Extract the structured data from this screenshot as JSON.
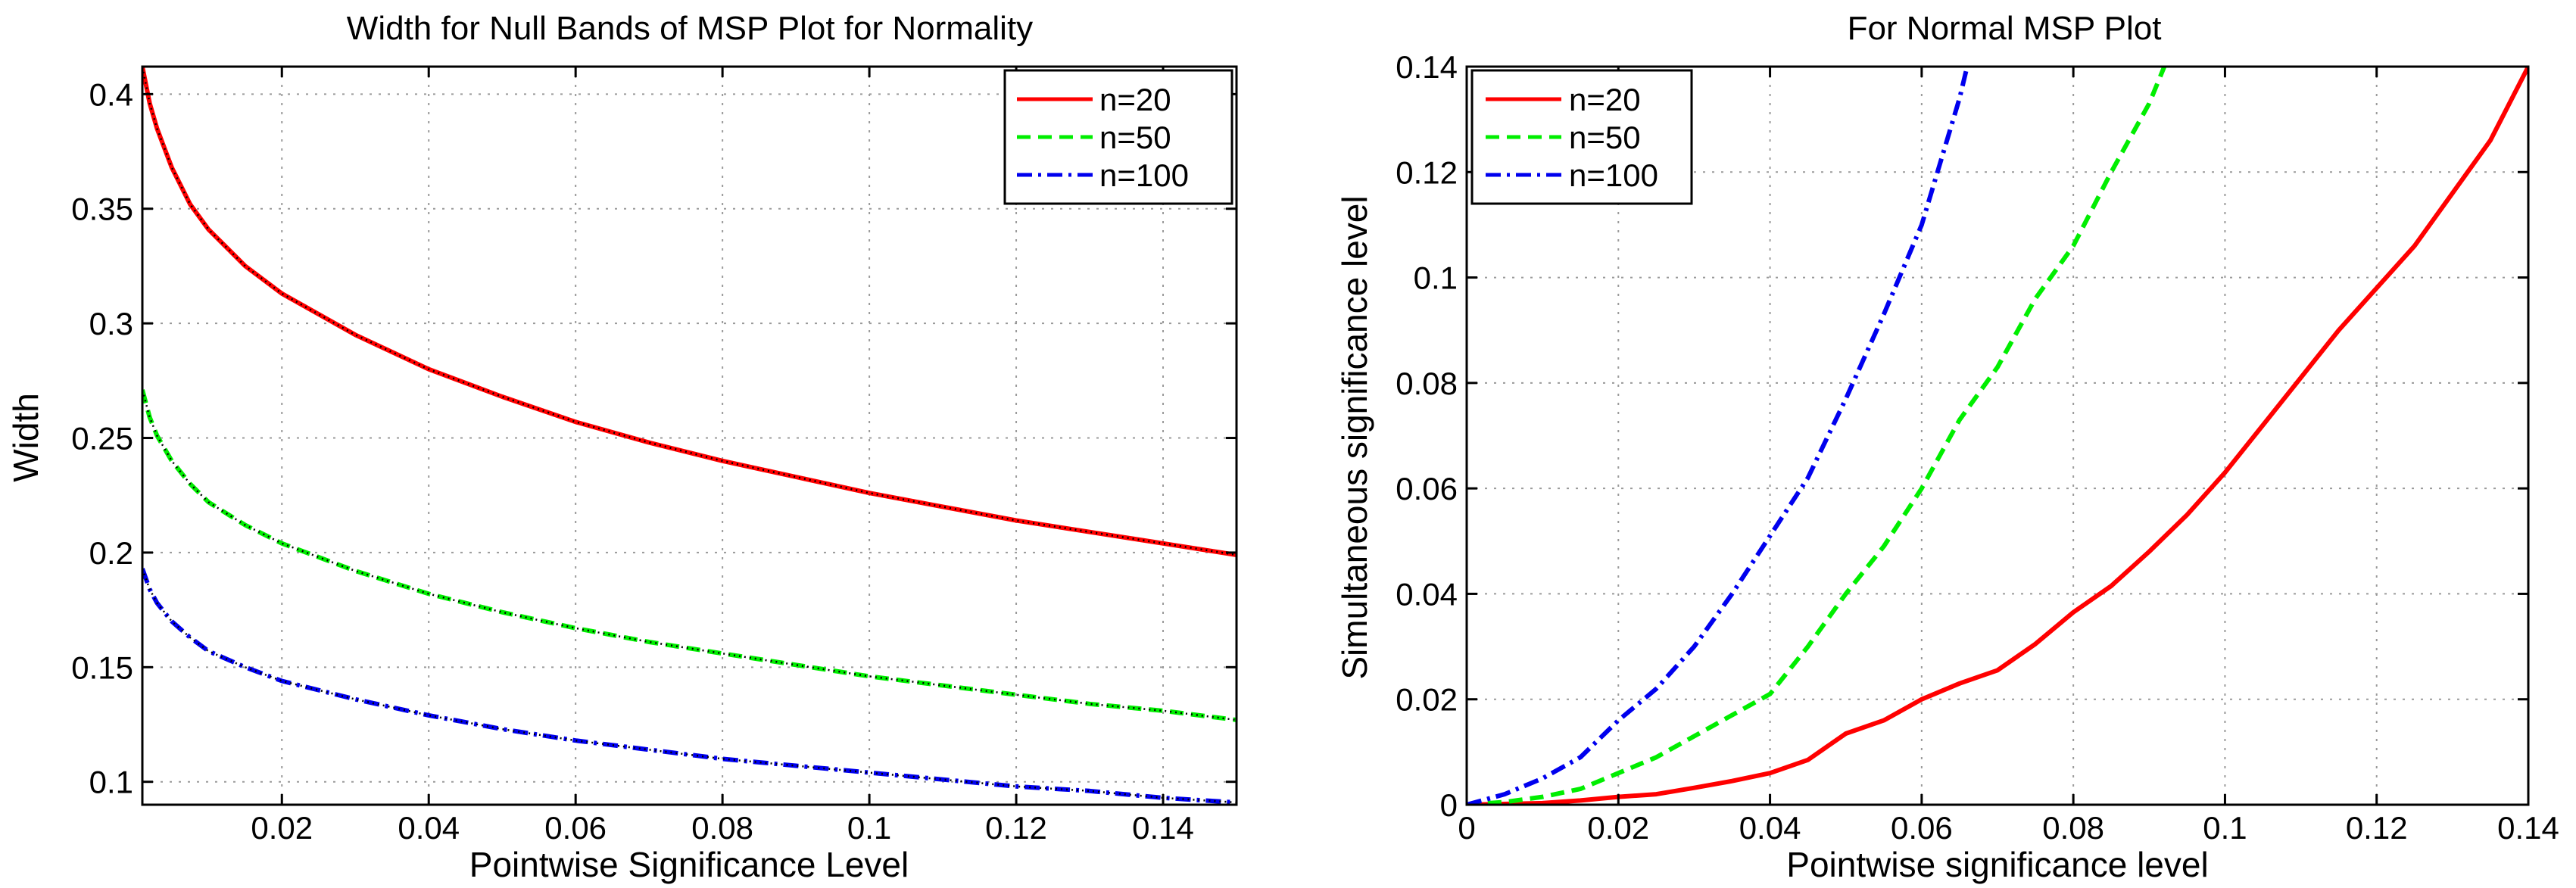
{
  "chart_data": [
    {
      "type": "line",
      "title": "Width for Null Bands of MSP Plot for Normality",
      "xlabel": "Pointwise Significance Level",
      "ylabel": "Width",
      "xlim": [
        0.001,
        0.15
      ],
      "ylim": [
        0.09,
        0.412
      ],
      "xticks": [
        0.02,
        0.04,
        0.06,
        0.08,
        0.1,
        0.12,
        0.14
      ],
      "xtick_labels": [
        "0.02",
        "0.04",
        "0.06",
        "0.08",
        "0.1",
        "0.12",
        "0.14"
      ],
      "yticks": [
        0.1,
        0.15,
        0.2,
        0.25,
        0.3,
        0.35,
        0.4
      ],
      "ytick_labels": [
        "0.1",
        "0.15",
        "0.2",
        "0.25",
        "0.3",
        "0.35",
        "0.4"
      ],
      "grid": true,
      "legend_position": "top-right",
      "series": [
        {
          "name": "n=20",
          "color": "#ff0000",
          "style": "solid",
          "overlay": "dotted-black",
          "x": [
            0.001,
            0.002,
            0.003,
            0.005,
            0.0075,
            0.01,
            0.015,
            0.02,
            0.03,
            0.04,
            0.05,
            0.06,
            0.07,
            0.08,
            0.09,
            0.1,
            0.11,
            0.12,
            0.13,
            0.14,
            0.15
          ],
          "y": [
            0.412,
            0.396,
            0.385,
            0.368,
            0.352,
            0.341,
            0.325,
            0.313,
            0.295,
            0.28,
            0.268,
            0.257,
            0.248,
            0.24,
            0.233,
            0.226,
            0.22,
            0.214,
            0.209,
            0.204,
            0.199
          ]
        },
        {
          "name": "n=50",
          "color": "#00ee00",
          "style": "dashed",
          "overlay": "dotted-black",
          "x": [
            0.001,
            0.002,
            0.003,
            0.005,
            0.0075,
            0.01,
            0.015,
            0.02,
            0.03,
            0.04,
            0.05,
            0.06,
            0.07,
            0.08,
            0.09,
            0.1,
            0.11,
            0.12,
            0.13,
            0.14,
            0.15
          ],
          "y": [
            0.271,
            0.259,
            0.251,
            0.24,
            0.23,
            0.222,
            0.212,
            0.204,
            0.192,
            0.182,
            0.174,
            0.167,
            0.161,
            0.156,
            0.151,
            0.146,
            0.142,
            0.138,
            0.134,
            0.131,
            0.127
          ]
        },
        {
          "name": "n=100",
          "color": "#0000ee",
          "style": "dashdot",
          "overlay": "dotted-black",
          "x": [
            0.001,
            0.002,
            0.003,
            0.005,
            0.0075,
            0.01,
            0.015,
            0.02,
            0.03,
            0.04,
            0.05,
            0.06,
            0.07,
            0.08,
            0.09,
            0.1,
            0.11,
            0.12,
            0.13,
            0.14,
            0.15
          ],
          "y": [
            0.193,
            0.184,
            0.178,
            0.17,
            0.163,
            0.157,
            0.15,
            0.144,
            0.136,
            0.129,
            0.123,
            0.118,
            0.114,
            0.11,
            0.107,
            0.104,
            0.101,
            0.098,
            0.096,
            0.093,
            0.091
          ]
        }
      ]
    },
    {
      "type": "line",
      "title": "For Normal MSP Plot",
      "xlabel": "Pointwise significance level",
      "ylabel": "Simultaneous significance level",
      "xlim": [
        0,
        0.14
      ],
      "ylim": [
        0,
        0.14
      ],
      "xticks": [
        0,
        0.02,
        0.04,
        0.06,
        0.08,
        0.1,
        0.12,
        0.14
      ],
      "xtick_labels": [
        "0",
        "0.02",
        "0.04",
        "0.06",
        "0.08",
        "0.1",
        "0.12",
        "0.14"
      ],
      "yticks": [
        0,
        0.02,
        0.04,
        0.06,
        0.08,
        0.1,
        0.12,
        0.14
      ],
      "ytick_labels": [
        "0",
        "0.02",
        "0.04",
        "0.06",
        "0.08",
        "0.1",
        "0.12",
        "0.14"
      ],
      "grid": true,
      "legend_position": "top-left",
      "series": [
        {
          "name": "n=20",
          "color": "#ff0000",
          "style": "solid",
          "x": [
            0,
            0.01,
            0.015,
            0.02,
            0.025,
            0.03,
            0.035,
            0.04,
            0.045,
            0.05,
            0.055,
            0.06,
            0.065,
            0.07,
            0.075,
            0.08,
            0.085,
            0.09,
            0.095,
            0.1,
            0.105,
            0.11,
            0.115,
            0.12,
            0.125,
            0.13,
            0.135,
            0.14
          ],
          "y": [
            0,
            0.0003,
            0.0008,
            0.0015,
            0.002,
            0.0032,
            0.0045,
            0.006,
            0.0085,
            0.0135,
            0.016,
            0.02,
            0.023,
            0.0255,
            0.0305,
            0.0365,
            0.0415,
            0.048,
            0.055,
            0.063,
            0.072,
            0.081,
            0.09,
            0.098,
            0.106,
            0.116,
            0.126,
            0.14
          ]
        },
        {
          "name": "n=50",
          "color": "#00ee00",
          "style": "dashed",
          "x": [
            0,
            0.005,
            0.01,
            0.015,
            0.02,
            0.025,
            0.03,
            0.035,
            0.04,
            0.045,
            0.05,
            0.055,
            0.06,
            0.065,
            0.07,
            0.075,
            0.08,
            0.085,
            0.09,
            0.092
          ],
          "y": [
            0,
            0.0005,
            0.0015,
            0.003,
            0.006,
            0.009,
            0.013,
            0.017,
            0.021,
            0.03,
            0.04,
            0.049,
            0.06,
            0.073,
            0.083,
            0.096,
            0.106,
            0.12,
            0.133,
            0.14
          ]
        },
        {
          "name": "n=100",
          "color": "#0000ee",
          "style": "dashdot",
          "x": [
            0,
            0.005,
            0.01,
            0.015,
            0.02,
            0.025,
            0.03,
            0.035,
            0.04,
            0.045,
            0.05,
            0.055,
            0.06,
            0.065,
            0.066
          ],
          "y": [
            0,
            0.002,
            0.005,
            0.009,
            0.016,
            0.022,
            0.03,
            0.04,
            0.051,
            0.062,
            0.077,
            0.093,
            0.11,
            0.134,
            0.14
          ]
        }
      ]
    }
  ]
}
